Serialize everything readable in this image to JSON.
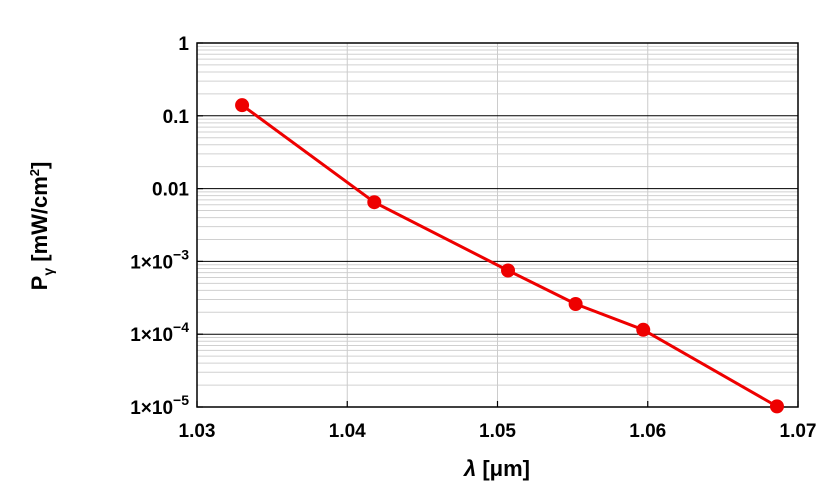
{
  "chart_data": {
    "type": "line",
    "title": "",
    "xlabel": {
      "symbol": "λ",
      "unit": " [μm]"
    },
    "ylabel": {
      "main": "P",
      "sub": "γ",
      "unit": " [mW/cm",
      "sup": "2",
      "close": "]"
    },
    "xlim": [
      1.03,
      1.07
    ],
    "ylim": [
      1e-05,
      1
    ],
    "yscale": "log",
    "grid": true,
    "legend": "none",
    "x_ticks": [
      {
        "value": 1.03,
        "label": "1.03"
      },
      {
        "value": 1.04,
        "label": "1.04"
      },
      {
        "value": 1.05,
        "label": "1.05"
      },
      {
        "value": 1.06,
        "label": "1.06"
      },
      {
        "value": 1.07,
        "label": "1.07"
      }
    ],
    "y_ticks": [
      {
        "value": 1,
        "label": "1",
        "mantissa": "",
        "exp": ""
      },
      {
        "value": 0.1,
        "label": "0.1",
        "mantissa": "",
        "exp": ""
      },
      {
        "value": 0.01,
        "label": "0.01",
        "mantissa": "",
        "exp": ""
      },
      {
        "value": 0.001,
        "label": "",
        "mantissa": "1×10",
        "exp": "−3"
      },
      {
        "value": 0.0001,
        "label": "",
        "mantissa": "1×10",
        "exp": "−4"
      },
      {
        "value": 1e-05,
        "label": "",
        "mantissa": "1×10",
        "exp": "−5"
      }
    ],
    "series": [
      {
        "color": "#ee0000",
        "x": [
          1.033,
          1.0418,
          1.0507,
          1.0552,
          1.0597,
          1.0686
        ],
        "y": [
          0.14,
          0.0065,
          0.00075,
          0.00026,
          0.000115,
          1.02e-05
        ]
      }
    ]
  }
}
